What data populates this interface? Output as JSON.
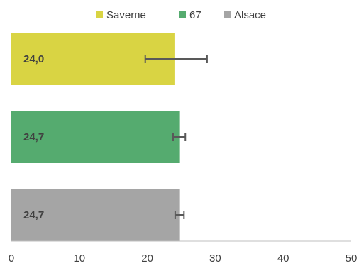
{
  "chart_data": {
    "type": "bar",
    "orientation": "horizontal",
    "title": "",
    "xlabel": "",
    "ylabel": "",
    "xlim": [
      0,
      50
    ],
    "x_ticks": [
      0,
      10,
      20,
      30,
      40,
      50
    ],
    "x_tick_labels": [
      "0",
      "10",
      "20",
      "30",
      "40",
      "50"
    ],
    "grid": false,
    "legend_position": "top",
    "series": [
      {
        "name": "Saverne",
        "value": 24.0,
        "label": "24,0",
        "error_low": 19.7,
        "error_high": 28.8,
        "color": "#d9d443"
      },
      {
        "name": "67",
        "value": 24.7,
        "label": "24,7",
        "error_low": 23.8,
        "error_high": 25.6,
        "color": "#55ab6f"
      },
      {
        "name": "Alsace",
        "value": 24.7,
        "label": "24,7",
        "error_low": 24.1,
        "error_high": 25.4,
        "color": "#a5a5a5"
      }
    ]
  }
}
